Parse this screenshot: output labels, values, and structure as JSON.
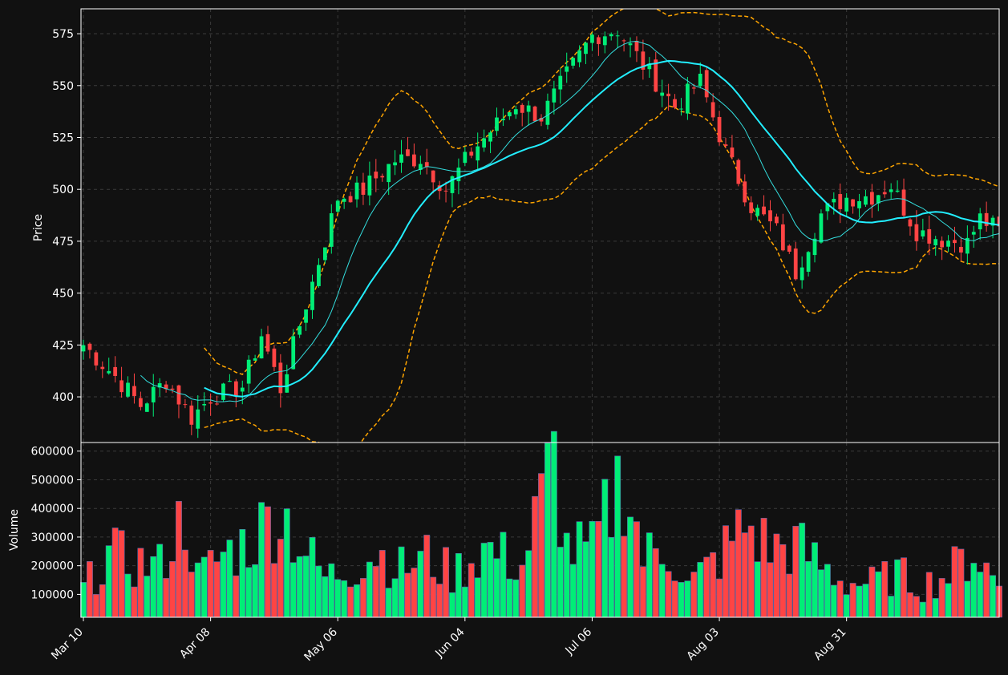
{
  "colors": {
    "background": "#111111",
    "up": "#00ee77",
    "down": "#ff4444",
    "sma_fast": "#33dddd",
    "sma_slow": "#22eeff",
    "bollinger": "#ffa500",
    "axis": "#ffffff"
  },
  "chart_data": [
    {
      "type": "candlestick",
      "ylabel": "Price",
      "ylim": [
        378,
        587
      ],
      "yticks": [
        400,
        425,
        450,
        475,
        500,
        525,
        550,
        575
      ],
      "xticks": [
        "Mar 10",
        "Apr 08",
        "May 06",
        "Jun 04",
        "Jul 06",
        "Aug 03",
        "Aug 31"
      ],
      "grid": true,
      "anchors": {
        "close": [
          [
            0,
            425
          ],
          [
            5,
            410
          ],
          [
            9,
            396
          ],
          [
            13,
            408
          ],
          [
            17,
            390
          ],
          [
            20,
            400
          ],
          [
            25,
            405
          ],
          [
            28,
            430
          ],
          [
            31,
            404
          ],
          [
            36,
            455
          ],
          [
            40,
            496
          ],
          [
            44,
            500
          ],
          [
            49,
            514
          ],
          [
            53,
            515
          ],
          [
            57,
            500
          ],
          [
            61,
            518
          ],
          [
            64,
            528
          ],
          [
            68,
            541
          ],
          [
            72,
            535
          ],
          [
            76,
            555
          ],
          [
            80,
            574
          ],
          [
            84,
            577
          ],
          [
            88,
            560
          ],
          [
            93,
            540
          ],
          [
            97,
            552
          ],
          [
            101,
            518
          ],
          [
            105,
            492
          ],
          [
            109,
            480
          ],
          [
            112,
            460
          ],
          [
            116,
            488
          ],
          [
            120,
            496
          ],
          [
            124,
            497
          ],
          [
            127,
            502
          ],
          [
            131,
            480
          ],
          [
            135,
            476
          ],
          [
            139,
            474
          ],
          [
            141,
            486
          ],
          [
            144,
            480
          ]
        ],
        "volume": [
          [
            0,
            120000
          ],
          [
            4,
            240000
          ],
          [
            8,
            210000
          ],
          [
            12,
            200000
          ],
          [
            16,
            380000
          ],
          [
            18,
            160000
          ],
          [
            22,
            240000
          ],
          [
            26,
            280000
          ],
          [
            31,
            400000
          ],
          [
            34,
            280000
          ],
          [
            38,
            160000
          ],
          [
            42,
            190000
          ],
          [
            46,
            250000
          ],
          [
            50,
            190000
          ],
          [
            54,
            230000
          ],
          [
            58,
            170000
          ],
          [
            63,
            260000
          ],
          [
            66,
            230000
          ],
          [
            69,
            200000
          ],
          [
            74,
            570000
          ],
          [
            76,
            260000
          ],
          [
            80,
            250000
          ],
          [
            85,
            530000
          ],
          [
            88,
            230000
          ],
          [
            92,
            260000
          ],
          [
            95,
            130000
          ],
          [
            100,
            230000
          ],
          [
            104,
            340000
          ],
          [
            108,
            260000
          ],
          [
            112,
            270000
          ],
          [
            116,
            200000
          ],
          [
            120,
            140000
          ],
          [
            124,
            140000
          ],
          [
            128,
            170000
          ],
          [
            132,
            130000
          ],
          [
            136,
            170000
          ],
          [
            140,
            250000
          ],
          [
            144,
            130000
          ]
        ]
      },
      "series": [
        {
          "name": "",
          "values": [],
          "style": "sma-fast",
          "window": 10
        },
        {
          "name": "",
          "values": [],
          "style": "sma-slow",
          "window": 20
        },
        {
          "name": "",
          "values": [],
          "style": "bollinger-upper",
          "window": 20
        },
        {
          "name": "",
          "values": [],
          "style": "bollinger-lower",
          "window": 20
        }
      ]
    },
    {
      "type": "bar",
      "ylabel": "Volume",
      "ylim": [
        20000,
        630000
      ],
      "yticks": [
        100000,
        200000,
        300000,
        400000,
        500000,
        600000
      ],
      "grid": true
    }
  ]
}
